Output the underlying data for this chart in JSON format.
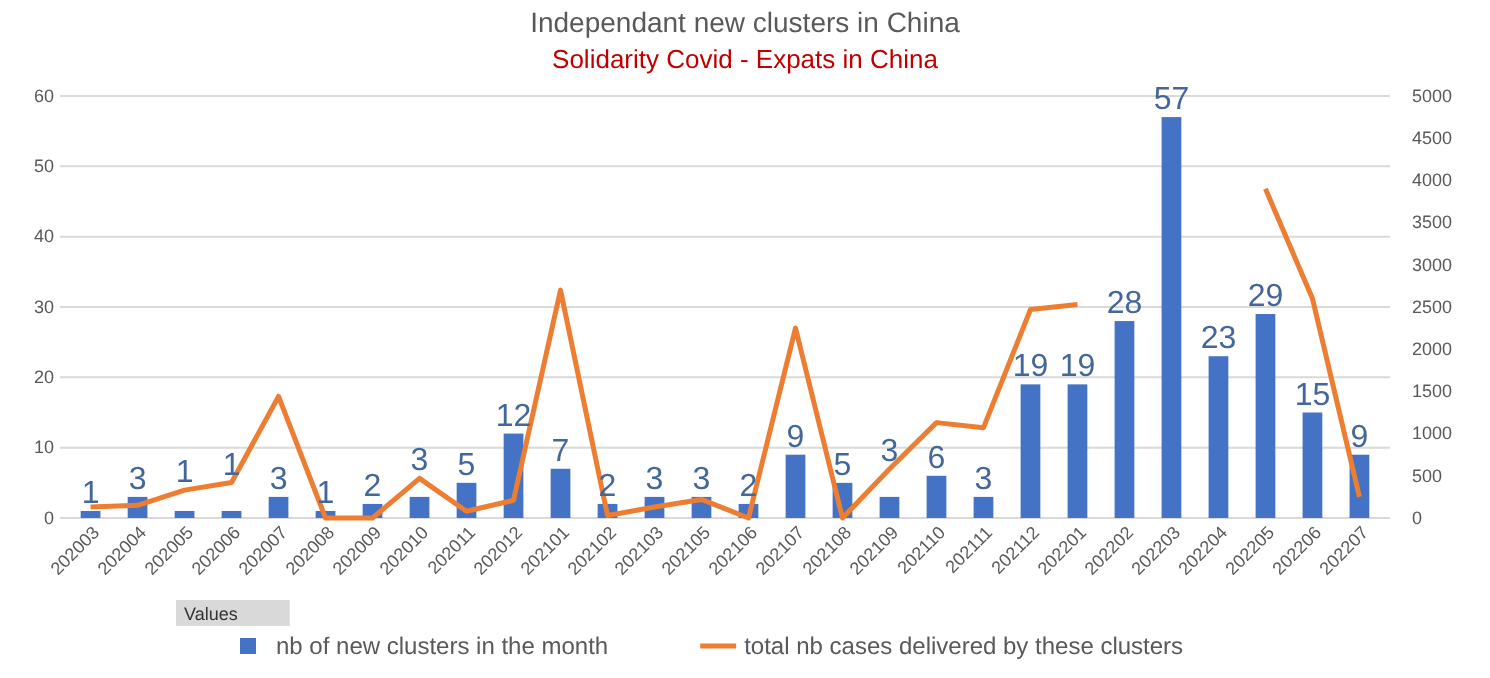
{
  "chart_data": {
    "type": "bar",
    "title": "Independant new clusters in China",
    "subtitle": "Solidarity Covid - Expats in China",
    "categories": [
      "202003",
      "202004",
      "202005",
      "202006",
      "202007",
      "202008",
      "202009",
      "202010",
      "202011",
      "202012",
      "202101",
      "202102",
      "202103",
      "202105",
      "202106",
      "202107",
      "202108",
      "202109",
      "202110",
      "202111",
      "202112",
      "202201",
      "202202",
      "202203",
      "202204",
      "202205",
      "202206",
      "202207"
    ],
    "series": [
      {
        "name": "nb of new clusters in the month",
        "color": "#4472c4",
        "values": [
          1,
          3,
          1,
          1,
          3,
          1,
          2,
          3,
          5,
          12,
          7,
          2,
          3,
          3,
          2,
          9,
          5,
          3,
          6,
          3,
          19,
          19,
          28,
          57,
          23,
          29,
          15,
          9
        ],
        "value_labels": [
          "1",
          "3",
          "1",
          "1",
          "3",
          "1",
          "2",
          "3",
          "5",
          "12",
          "7",
          "2",
          "3",
          "3",
          "2",
          "9",
          "5",
          "3",
          "6",
          "3",
          "19",
          "19",
          "28",
          "57",
          "23",
          "29",
          "15",
          "9"
        ]
      },
      {
        "name": "total nb cases delivered by these clusters",
        "type": "line",
        "axis": "y2",
        "color": "#ed7d31",
        "values": [
          130,
          150,
          330,
          420,
          1440,
          0,
          0,
          470,
          80,
          210,
          2700,
          30,
          130,
          220,
          0,
          2250,
          0,
          580,
          1130,
          1070,
          2470,
          2530,
          null,
          null,
          null,
          3900,
          2600,
          250
        ]
      }
    ],
    "ylim": [
      0,
      60
    ],
    "yticks": [
      0,
      10,
      20,
      30,
      40,
      50,
      60
    ],
    "y2lim": [
      0,
      5000
    ],
    "y2ticks": [
      0,
      500,
      1000,
      1500,
      2000,
      2500,
      3000,
      3500,
      4000,
      4500,
      5000
    ],
    "grid": "y",
    "legend": "bottom",
    "annotations": [
      "Values"
    ]
  }
}
